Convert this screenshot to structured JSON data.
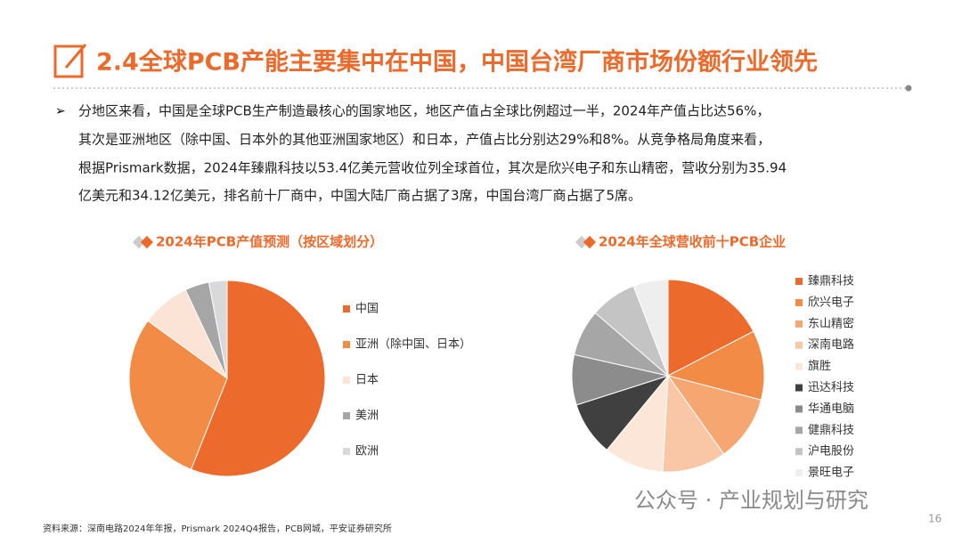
{
  "header": {
    "title": "2.4全球PCB产能主要集中在中国，中国台湾厂商市场份额行业领先"
  },
  "body": {
    "lines": [
      "分地区来看，中国是全球PCB生产制造最核心的国家地区，地区产值占全球比例超过一半，2024年产值占比达56%，",
      "其次是亚洲地区（除中国、日本外的其他亚洲国家地区）和日本，产值占比分别达29%和8%。从竞争格局角度来看，",
      "根据Prismark数据，2024年臻鼎科技以53.4亿美元营收位列全球首位，其次是欣兴电子和东山精密，营收分别为35.94",
      "亿美元和34.12亿美元，排名前十厂商中，中国大陆厂商占据了3席，中国台湾厂商占据了5席。"
    ]
  },
  "chart_data": [
    {
      "type": "pie",
      "title": "2024年PCB产值预测（按区域划分）",
      "categories": [
        "中国",
        "亚洲（除中国、日本）",
        "日本",
        "美洲",
        "欧洲"
      ],
      "values": [
        56,
        29,
        8,
        4,
        3
      ],
      "colors": [
        "#ec6a2c",
        "#f28b45",
        "#fbe4d5",
        "#a6a6a6",
        "#d9d9d9"
      ]
    },
    {
      "type": "pie",
      "title": "2024年全球营收前十PCB企业",
      "categories": [
        "臻鼎科技",
        "欣兴电子",
        "东山精密",
        "深南电路",
        "旗胜",
        "迅达科技",
        "华通电脑",
        "健鼎科技",
        "沪电股份",
        "景旺电子"
      ],
      "values": [
        53.4,
        35.94,
        34.12,
        33,
        31,
        28,
        26,
        24,
        24,
        18
      ],
      "colors": [
        "#ec6a2c",
        "#f28b45",
        "#f6a670",
        "#f9c7a5",
        "#fce6d8",
        "#404040",
        "#8c8c8c",
        "#a6a6a6",
        "#c4c4c4",
        "#eeeeee"
      ]
    }
  ],
  "footer": {
    "source": "资料来源：深南电路2024年年报，Prismark 2024Q4报告，PCB网城，平安证券研究所",
    "page": "16",
    "watermark": "公众号 · 产业规划与研究"
  }
}
